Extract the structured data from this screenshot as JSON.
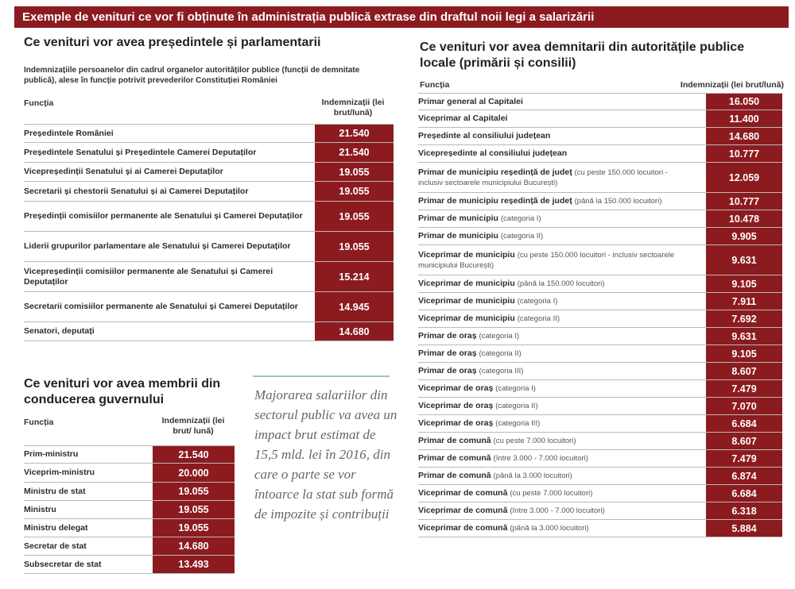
{
  "banner": "Exemple de venituri ce vor fi obținute în administrația publică extrase din draftul noii legi a salarizării",
  "parliament": {
    "title": "Ce venituri vor avea președintele și parlamentarii",
    "subtitle": "Indemnizațiile persoanelor din cadrul organelor autorităților publice (funcții de demnitate publică), alese în funcție potrivit prevederilor Constituției României",
    "col_function": "Funcția",
    "col_value": "Indemnizații (lei brut/lună)",
    "rows": [
      {
        "label": "Președintele României",
        "value": "21.540"
      },
      {
        "label": "Președintele Senatului și Președintele Camerei Deputaților",
        "value": "21.540"
      },
      {
        "label": "Vicepreședinții Senatului și ai Camerei Deputaților",
        "value": "19.055"
      },
      {
        "label": "Secretarii și chestorii Senatului și ai Camerei Deputaților",
        "value": "19.055"
      },
      {
        "label": "Președinții comisiilor permanente ale Senatului și Camerei Deputaților",
        "value": "19.055"
      },
      {
        "label": "Liderii grupurilor parlamentare ale Senatului și Camerei Deputaților",
        "value": "19.055"
      },
      {
        "label": "Vicepreședinții comisiilor permanente ale Senatului și Camerei Deputaților",
        "value": "15.214"
      },
      {
        "label": "Secretarii comisiilor permanente ale Senatului și Camerei Deputaților",
        "value": "14.945"
      },
      {
        "label": "Senatori, deputați",
        "value": "14.680"
      }
    ]
  },
  "government": {
    "title": "Ce venituri vor avea membrii din conducerea guvernului",
    "col_function": "Funcția",
    "col_value": "Indemnizații (lei brut/ lună)",
    "rows": [
      {
        "label": "Prim-ministru",
        "value": "21.540"
      },
      {
        "label": "Viceprim-ministru",
        "value": "20.000"
      },
      {
        "label": "Ministru de stat",
        "value": "19.055"
      },
      {
        "label": "Ministru",
        "value": "19.055"
      },
      {
        "label": "Ministru delegat",
        "value": "19.055"
      },
      {
        "label": "Secretar de stat",
        "value": "14.680"
      },
      {
        "label": "Subsecretar de stat",
        "value": "13.493"
      }
    ]
  },
  "quote": "Majorarea salariilor din sectorul public va avea un impact brut estimat de 15,5 mld. lei în 2016, din care o parte se vor întoarce la stat sub formă de impozite și contribuții",
  "local": {
    "title": "Ce venituri vor avea demnitarii din autoritățile publice locale (primării și consilii)",
    "col_function": "Funcția",
    "col_value": "Indemnizații (lei brut/lună)",
    "rows": [
      {
        "label": "Primar general al Capitalei",
        "qualifier": "",
        "value": "16.050"
      },
      {
        "label": "Viceprimar al Capitalei",
        "qualifier": "",
        "value": "11.400"
      },
      {
        "label": "Președinte al consiliului județean",
        "qualifier": "",
        "value": "14.680"
      },
      {
        "label": "Vicepreședinte al consiliului județean",
        "qualifier": "",
        "value": "10.777"
      },
      {
        "label": "Primar de municipiu reședință de județ",
        "qualifier": "(cu peste 150.000 locuitori - inclusiv sectoarele municipiului București)",
        "value": "12.059"
      },
      {
        "label": "Primar de municipiu reședință de județ",
        "qualifier": "(până la 150.000 locuitori)",
        "value": "10.777"
      },
      {
        "label": "Primar de municipiu",
        "qualifier": "(categoria I)",
        "value": "10.478"
      },
      {
        "label": "Primar de municipiu",
        "qualifier": "(categoria II)",
        "value": "9.905"
      },
      {
        "label": "Viceprimar de municipiu",
        "qualifier": "(cu peste 150.000 locuitori - inclusiv sectoarele municipiului București)",
        "value": "9.631"
      },
      {
        "label": "Viceprimar de municipiu",
        "qualifier": "(până la 150.000 locuitori)",
        "value": "9.105"
      },
      {
        "label": "Viceprimar de municipiu",
        "qualifier": "(categoria I)",
        "value": "7.911"
      },
      {
        "label": "Viceprimar de municipiu",
        "qualifier": "(categoria II)",
        "value": "7.692"
      },
      {
        "label": "Primar de oraș",
        "qualifier": "(categoria I)",
        "value": "9.631"
      },
      {
        "label": "Primar de oraș",
        "qualifier": "(categoria II)",
        "value": "9.105"
      },
      {
        "label": "Primar de oraș",
        "qualifier": "(categoria III)",
        "value": "8.607"
      },
      {
        "label": "Viceprimar de oraș",
        "qualifier": "(categoria I)",
        "value": "7.479"
      },
      {
        "label": "Viceprimar de oraș",
        "qualifier": "(categoria II)",
        "value": "7.070"
      },
      {
        "label": "Viceprimar de oraș",
        "qualifier": "(categoria III)",
        "value": "6.684"
      },
      {
        "label": "Primar de comună",
        "qualifier": "(cu peste 7.000 locuitori)",
        "value": "8.607"
      },
      {
        "label": "Primar de comună",
        "qualifier": "(între 3.000 - 7.000 locuitori)",
        "value": "7.479"
      },
      {
        "label": "Primar de comună",
        "qualifier": "(până la 3.000 locuitori)",
        "value": "6.874"
      },
      {
        "label": "Viceprimar de comună",
        "qualifier": "(cu peste 7.000 locuitori)",
        "value": "6.684"
      },
      {
        "label": "Viceprimar de comună",
        "qualifier": "(între 3.000 - 7.000 locuitori)",
        "value": "6.318"
      },
      {
        "label": "Viceprimar de comună",
        "qualifier": "(până la 3.000 locuitori)",
        "value": "5.884"
      }
    ]
  },
  "colors": {
    "accent": "#8c1b20"
  }
}
